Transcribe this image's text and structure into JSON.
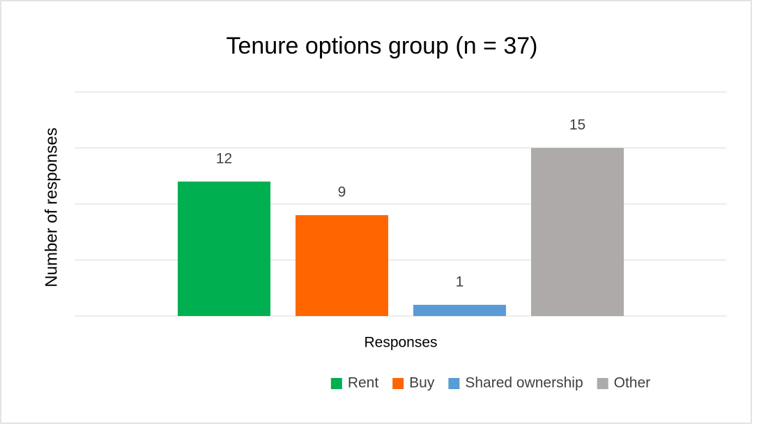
{
  "chart_data": {
    "type": "bar",
    "title": "Tenure options group (n = 37)",
    "x_label": "Responses",
    "y_label": "Number of responses",
    "categories": [
      null
    ],
    "series": [
      {
        "name": "Rent",
        "color": "#00b050",
        "values": [
          12
        ]
      },
      {
        "name": "Buy",
        "color": "#ff6600",
        "values": [
          9
        ]
      },
      {
        "name": "Shared ownership",
        "color": "#5b9bd5",
        "values": [
          1
        ]
      },
      {
        "name": "Other",
        "color": "#aeaaaa",
        "values": [
          15
        ]
      }
    ],
    "ylim": [
      0,
      20
    ],
    "yticks": [
      0,
      5,
      10,
      15,
      20
    ],
    "grid": true,
    "legend": "bottom"
  }
}
